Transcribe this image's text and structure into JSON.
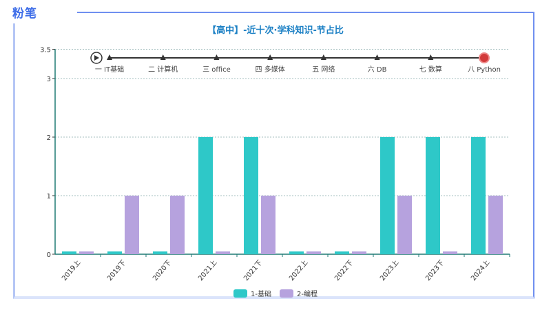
{
  "brand": {
    "logo_text": "粉笔",
    "color": "#3f6ee8"
  },
  "chart_data": {
    "type": "bar",
    "title": "【高中】-近十次·学科知识-节占比",
    "categories": [
      "2019上",
      "2019下",
      "2020下",
      "2021上",
      "2021下",
      "2022上",
      "2022下",
      "2023上",
      "2023下",
      "2024上"
    ],
    "series": [
      {
        "name": "1-基础",
        "color": "#2ec8c8",
        "values": [
          0,
          0,
          0,
          2,
          2,
          0,
          0,
          2,
          2,
          2
        ]
      },
      {
        "name": "2-编程",
        "color": "#b6a2de",
        "values": [
          0,
          1,
          1,
          0,
          1,
          0,
          0,
          1,
          0,
          1
        ]
      }
    ],
    "ylim": [
      0,
      3.5
    ],
    "yticks": [
      "0",
      "1",
      "2",
      "3",
      "3.5"
    ],
    "grid": true,
    "legend": "bottom",
    "timeline": {
      "items": [
        "一 IT基础",
        "二 计算机",
        "三 office",
        "四 多媒体",
        "五 网络",
        "六 DB",
        "七 数算",
        "八 Python"
      ],
      "current": 7,
      "play_icon": "play-icon"
    }
  }
}
